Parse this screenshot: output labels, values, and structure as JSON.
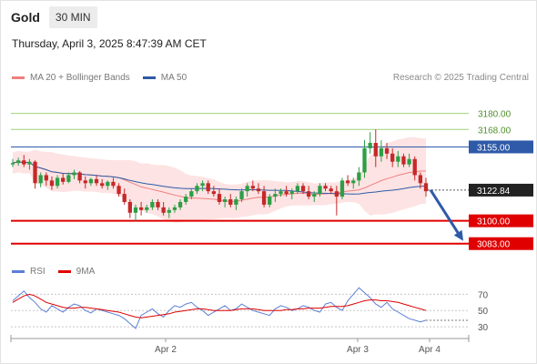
{
  "header": {
    "title": "Gold",
    "timeframe": "30 MIN",
    "datetime": "Thursday, April 3, 2025 8:47:39 AM CET"
  },
  "legend": {
    "ma20_label": "MA 20 + Bollinger Bands",
    "ma50_label": "MA 50",
    "ma20_color": "#f08080",
    "ma50_color": "#2e5aa8",
    "credit": "Research © 2025 Trading Central"
  },
  "rsi_legend": {
    "rsi_label": "RSI",
    "ma9_label": "9MA",
    "rsi_color": "#5b7fd6",
    "ma9_color": "#e00000"
  },
  "colors": {
    "up": "#2e9e46",
    "down": "#c62828",
    "resistance": "#9ed17c",
    "support": "#e00000",
    "pivot": "#2e5aa8",
    "band_fill": "#fde3e3",
    "arrow": "#2e5aa8"
  },
  "chart_data": [
    {
      "type": "candlestick",
      "title": "Gold",
      "y_range": [
        3074,
        3198
      ],
      "x_ticks": [
        "Apr 2",
        "Apr 3",
        "Apr 4"
      ],
      "levels": [
        {
          "value": 3180.0,
          "label": "3180.00",
          "kind": "resistance"
        },
        {
          "value": 3168.0,
          "label": "3168.00",
          "kind": "resistance"
        },
        {
          "value": 3155.0,
          "label": "3155.00",
          "kind": "pivot"
        },
        {
          "value": 3100.0,
          "label": "3100.00",
          "kind": "support"
        },
        {
          "value": 3083.0,
          "label": "3083.00",
          "kind": "support"
        }
      ],
      "last_price": {
        "value": 3122.84,
        "label": "3122.84"
      },
      "forecast_arrow": {
        "from": 3123,
        "to": 3083
      },
      "ohlc": [
        [
          3142,
          3146,
          3140,
          3143
        ],
        [
          3143,
          3147,
          3141,
          3145
        ],
        [
          3145,
          3149,
          3140,
          3142
        ],
        [
          3142,
          3146,
          3138,
          3144
        ],
        [
          3144,
          3145,
          3124,
          3128
        ],
        [
          3128,
          3136,
          3125,
          3134
        ],
        [
          3134,
          3136,
          3126,
          3130
        ],
        [
          3130,
          3133,
          3123,
          3126
        ],
        [
          3126,
          3134,
          3124,
          3132
        ],
        [
          3132,
          3135,
          3127,
          3129
        ],
        [
          3129,
          3136,
          3128,
          3134
        ],
        [
          3134,
          3138,
          3131,
          3136
        ],
        [
          3136,
          3137,
          3128,
          3130
        ],
        [
          3130,
          3133,
          3124,
          3128
        ],
        [
          3128,
          3132,
          3126,
          3131
        ],
        [
          3131,
          3134,
          3126,
          3128
        ],
        [
          3128,
          3131,
          3124,
          3126
        ],
        [
          3126,
          3130,
          3123,
          3129
        ],
        [
          3129,
          3132,
          3124,
          3126
        ],
        [
          3126,
          3128,
          3118,
          3120
        ],
        [
          3120,
          3124,
          3112,
          3114
        ],
        [
          3114,
          3116,
          3102,
          3106
        ],
        [
          3106,
          3112,
          3100,
          3110
        ],
        [
          3110,
          3114,
          3104,
          3108
        ],
        [
          3108,
          3112,
          3106,
          3110
        ],
        [
          3110,
          3116,
          3108,
          3114
        ],
        [
          3114,
          3116,
          3108,
          3110
        ],
        [
          3110,
          3114,
          3104,
          3106
        ],
        [
          3106,
          3110,
          3102,
          3108
        ],
        [
          3108,
          3112,
          3106,
          3110
        ],
        [
          3110,
          3116,
          3108,
          3114
        ],
        [
          3114,
          3120,
          3112,
          3118
        ],
        [
          3118,
          3124,
          3116,
          3122
        ],
        [
          3122,
          3128,
          3120,
          3126
        ],
        [
          3126,
          3130,
          3122,
          3128
        ],
        [
          3128,
          3130,
          3120,
          3122
        ],
        [
          3122,
          3126,
          3118,
          3120
        ],
        [
          3120,
          3124,
          3112,
          3114
        ],
        [
          3114,
          3118,
          3110,
          3116
        ],
        [
          3116,
          3120,
          3110,
          3112
        ],
        [
          3112,
          3118,
          3108,
          3116
        ],
        [
          3116,
          3124,
          3114,
          3122
        ],
        [
          3122,
          3128,
          3118,
          3126
        ],
        [
          3126,
          3130,
          3122,
          3124
        ],
        [
          3124,
          3128,
          3120,
          3122
        ],
        [
          3122,
          3126,
          3110,
          3112
        ],
        [
          3112,
          3120,
          3110,
          3118
        ],
        [
          3118,
          3124,
          3114,
          3120
        ],
        [
          3120,
          3124,
          3118,
          3122
        ],
        [
          3122,
          3126,
          3118,
          3120
        ],
        [
          3120,
          3124,
          3116,
          3122
        ],
        [
          3122,
          3128,
          3120,
          3126
        ],
        [
          3126,
          3128,
          3120,
          3122
        ],
        [
          3122,
          3126,
          3116,
          3118
        ],
        [
          3118,
          3122,
          3114,
          3120
        ],
        [
          3120,
          3128,
          3118,
          3126
        ],
        [
          3126,
          3128,
          3122,
          3124
        ],
        [
          3124,
          3126,
          3120,
          3122
        ],
        [
          3122,
          3126,
          3104,
          3118
        ],
        [
          3118,
          3132,
          3116,
          3130
        ],
        [
          3130,
          3134,
          3126,
          3128
        ],
        [
          3128,
          3132,
          3124,
          3130
        ],
        [
          3130,
          3140,
          3126,
          3136
        ],
        [
          3136,
          3160,
          3132,
          3154
        ],
        [
          3154,
          3166,
          3150,
          3158
        ],
        [
          3158,
          3168,
          3140,
          3148
        ],
        [
          3148,
          3160,
          3144,
          3154
        ],
        [
          3154,
          3158,
          3146,
          3150
        ],
        [
          3150,
          3154,
          3140,
          3144
        ],
        [
          3144,
          3152,
          3140,
          3148
        ],
        [
          3148,
          3150,
          3140,
          3142
        ],
        [
          3142,
          3150,
          3140,
          3146
        ],
        [
          3146,
          3148,
          3130,
          3134
        ],
        [
          3134,
          3136,
          3124,
          3128
        ],
        [
          3128,
          3132,
          3118,
          3122
        ]
      ]
    },
    {
      "type": "line",
      "title": "RSI",
      "y_ticks": [
        70,
        50,
        30
      ],
      "y_range": [
        20,
        85
      ],
      "series": [
        {
          "name": "RSI",
          "values": [
            62,
            68,
            74,
            66,
            60,
            52,
            48,
            56,
            52,
            48,
            54,
            58,
            56,
            50,
            47,
            52,
            50,
            48,
            46,
            44,
            40,
            34,
            28,
            44,
            48,
            52,
            46,
            42,
            50,
            56,
            54,
            58,
            60,
            54,
            50,
            44,
            48,
            52,
            56,
            50,
            52,
            58,
            54,
            50,
            48,
            46,
            44,
            52,
            56,
            54,
            50,
            52,
            56,
            54,
            50,
            48,
            58,
            60,
            54,
            50,
            62,
            70,
            78,
            72,
            66,
            58,
            54,
            60,
            52,
            48,
            44,
            40,
            38,
            36,
            38
          ]
        },
        {
          "name": "9MA",
          "values": [
            60,
            64,
            68,
            70,
            68,
            64,
            60,
            58,
            56,
            54,
            53,
            53,
            54,
            54,
            53,
            52,
            51,
            50,
            49,
            48,
            46,
            44,
            42,
            41,
            42,
            43,
            44,
            45,
            46,
            48,
            49,
            50,
            51,
            52,
            52,
            51,
            50,
            50,
            50,
            50,
            51,
            52,
            52,
            52,
            51,
            50,
            50,
            50,
            50,
            51,
            51,
            52,
            52,
            53,
            53,
            53,
            54,
            55,
            55,
            55,
            56,
            58,
            60,
            62,
            63,
            63,
            62,
            62,
            61,
            60,
            58,
            56,
            54,
            52,
            50
          ]
        }
      ]
    }
  ]
}
